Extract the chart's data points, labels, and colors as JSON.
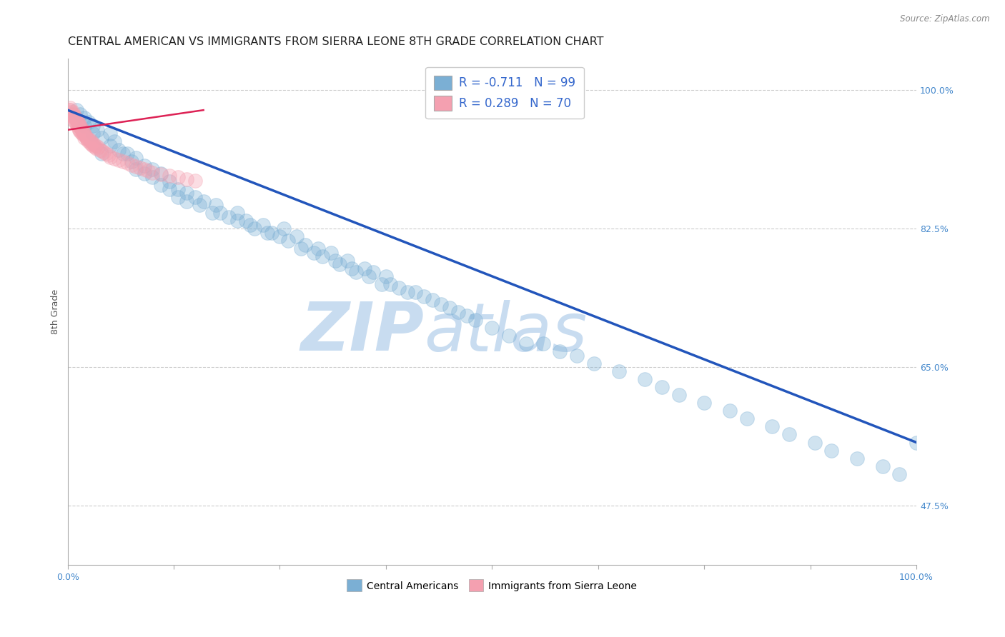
{
  "title": "CENTRAL AMERICAN VS IMMIGRANTS FROM SIERRA LEONE 8TH GRADE CORRELATION CHART",
  "source": "Source: ZipAtlas.com",
  "ylabel": "8th Grade",
  "xlim": [
    0.0,
    1.0
  ],
  "ylim": [
    0.4,
    1.04
  ],
  "ytick_positions": [
    0.475,
    0.65,
    0.825,
    1.0
  ],
  "ytick_label_map": {
    "0.475": "47.5%",
    "0.65": "65.0%",
    "0.825": "82.5%",
    "1.0": "100.0%"
  },
  "xtick_positions": [
    0.0,
    0.125,
    0.25,
    0.375,
    0.5,
    0.625,
    0.75,
    0.875,
    1.0
  ],
  "xtick_labels": [
    "0.0%",
    "",
    "",
    "",
    "",
    "",
    "",
    "",
    "100.0%"
  ],
  "blue_R": -0.711,
  "blue_N": 99,
  "pink_R": 0.289,
  "pink_N": 70,
  "blue_color": "#7BAFD4",
  "pink_color": "#F4A0B0",
  "blue_line_color": "#2255BB",
  "pink_line_color": "#DD2255",
  "blue_scatter_x": [
    0.01,
    0.015,
    0.02,
    0.02,
    0.025,
    0.03,
    0.03,
    0.035,
    0.04,
    0.04,
    0.05,
    0.05,
    0.055,
    0.06,
    0.065,
    0.07,
    0.075,
    0.08,
    0.08,
    0.09,
    0.09,
    0.1,
    0.1,
    0.11,
    0.11,
    0.12,
    0.12,
    0.13,
    0.13,
    0.14,
    0.14,
    0.15,
    0.155,
    0.16,
    0.17,
    0.175,
    0.18,
    0.19,
    0.2,
    0.2,
    0.21,
    0.215,
    0.22,
    0.23,
    0.235,
    0.24,
    0.25,
    0.255,
    0.26,
    0.27,
    0.275,
    0.28,
    0.29,
    0.295,
    0.3,
    0.31,
    0.315,
    0.32,
    0.33,
    0.335,
    0.34,
    0.35,
    0.355,
    0.36,
    0.37,
    0.375,
    0.38,
    0.39,
    0.4,
    0.41,
    0.42,
    0.43,
    0.44,
    0.45,
    0.46,
    0.47,
    0.48,
    0.5,
    0.52,
    0.54,
    0.56,
    0.58,
    0.6,
    0.62,
    0.65,
    0.68,
    0.7,
    0.72,
    0.75,
    0.78,
    0.8,
    0.83,
    0.85,
    0.88,
    0.9,
    0.93,
    0.96,
    0.98,
    1.0
  ],
  "blue_scatter_y": [
    0.975,
    0.97,
    0.965,
    0.955,
    0.96,
    0.955,
    0.945,
    0.95,
    0.94,
    0.92,
    0.945,
    0.93,
    0.935,
    0.925,
    0.92,
    0.92,
    0.91,
    0.915,
    0.9,
    0.905,
    0.895,
    0.9,
    0.89,
    0.895,
    0.88,
    0.885,
    0.875,
    0.875,
    0.865,
    0.87,
    0.86,
    0.865,
    0.855,
    0.86,
    0.845,
    0.855,
    0.845,
    0.84,
    0.845,
    0.835,
    0.835,
    0.83,
    0.825,
    0.83,
    0.82,
    0.82,
    0.815,
    0.825,
    0.81,
    0.815,
    0.8,
    0.805,
    0.795,
    0.8,
    0.79,
    0.795,
    0.785,
    0.78,
    0.785,
    0.775,
    0.77,
    0.775,
    0.765,
    0.77,
    0.755,
    0.765,
    0.755,
    0.75,
    0.745,
    0.745,
    0.74,
    0.735,
    0.73,
    0.725,
    0.72,
    0.715,
    0.71,
    0.7,
    0.69,
    0.68,
    0.68,
    0.67,
    0.665,
    0.655,
    0.645,
    0.635,
    0.625,
    0.615,
    0.605,
    0.595,
    0.585,
    0.575,
    0.565,
    0.555,
    0.545,
    0.535,
    0.525,
    0.515,
    0.555
  ],
  "pink_scatter_x": [
    0.002,
    0.003,
    0.004,
    0.005,
    0.005,
    0.006,
    0.007,
    0.007,
    0.008,
    0.008,
    0.009,
    0.009,
    0.01,
    0.01,
    0.011,
    0.011,
    0.012,
    0.012,
    0.013,
    0.013,
    0.014,
    0.014,
    0.015,
    0.015,
    0.016,
    0.016,
    0.017,
    0.018,
    0.018,
    0.019,
    0.02,
    0.02,
    0.021,
    0.022,
    0.023,
    0.024,
    0.025,
    0.026,
    0.027,
    0.028,
    0.029,
    0.03,
    0.031,
    0.032,
    0.033,
    0.034,
    0.036,
    0.038,
    0.04,
    0.042,
    0.045,
    0.048,
    0.05,
    0.055,
    0.06,
    0.065,
    0.07,
    0.075,
    0.08,
    0.085,
    0.09,
    0.095,
    0.1,
    0.11,
    0.12,
    0.13,
    0.14,
    0.15,
    0.003,
    0.006
  ],
  "pink_scatter_y": [
    0.975,
    0.975,
    0.972,
    0.97,
    0.968,
    0.972,
    0.968,
    0.965,
    0.968,
    0.962,
    0.965,
    0.96,
    0.963,
    0.958,
    0.962,
    0.956,
    0.96,
    0.955,
    0.958,
    0.952,
    0.956,
    0.95,
    0.954,
    0.948,
    0.952,
    0.946,
    0.95,
    0.948,
    0.944,
    0.946,
    0.944,
    0.94,
    0.942,
    0.94,
    0.938,
    0.936,
    0.938,
    0.934,
    0.936,
    0.932,
    0.934,
    0.93,
    0.932,
    0.928,
    0.93,
    0.926,
    0.928,
    0.925,
    0.924,
    0.922,
    0.92,
    0.918,
    0.916,
    0.914,
    0.912,
    0.91,
    0.908,
    0.906,
    0.904,
    0.902,
    0.9,
    0.898,
    0.896,
    0.894,
    0.892,
    0.89,
    0.888,
    0.886,
    0.978,
    0.97
  ],
  "blue_line_x": [
    0.0,
    1.0
  ],
  "blue_line_y": [
    0.975,
    0.555
  ],
  "pink_line_x": [
    0.0,
    0.16
  ],
  "pink_line_y": [
    0.95,
    0.975
  ],
  "grid_color": "#CCCCCC",
  "grid_style": "--",
  "title_fontsize": 11.5,
  "axis_label_fontsize": 9,
  "tick_fontsize": 9,
  "marker_size": 200,
  "marker_alpha": 0.35,
  "legend_R_color": "#3366CC",
  "legend_N_color": "#3366CC",
  "legend_text_color": "#222222"
}
